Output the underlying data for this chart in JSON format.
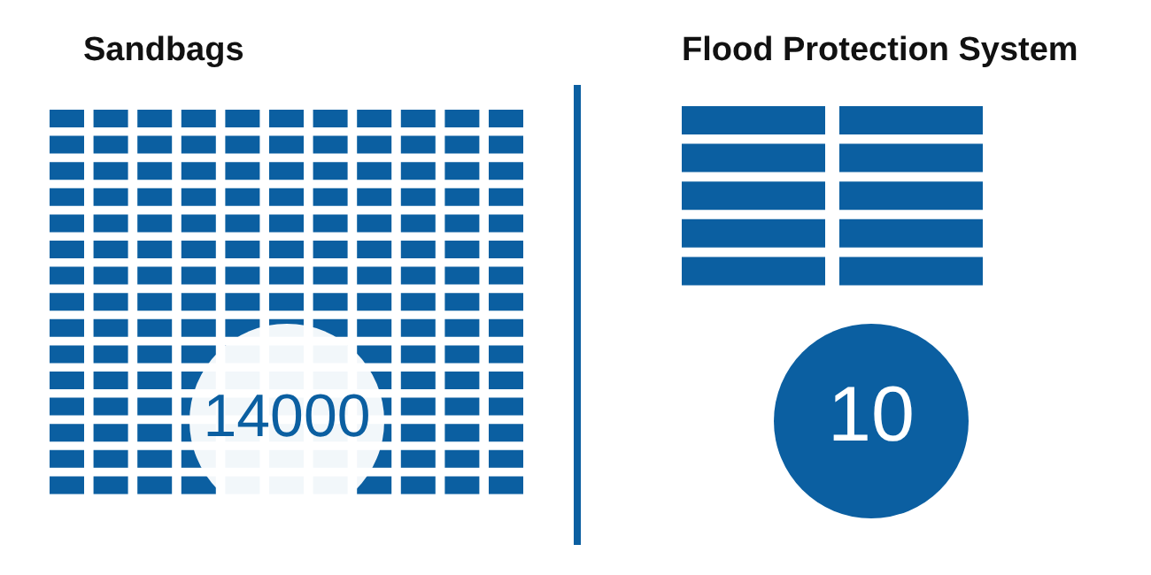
{
  "chart_data": {
    "type": "other",
    "categories": [
      "Sandbags",
      "Flood Protection System"
    ],
    "values": [
      14000,
      10
    ],
    "colors": [
      "#ffffff",
      "#0b5fa1"
    ],
    "data_labels": true
  }
}
